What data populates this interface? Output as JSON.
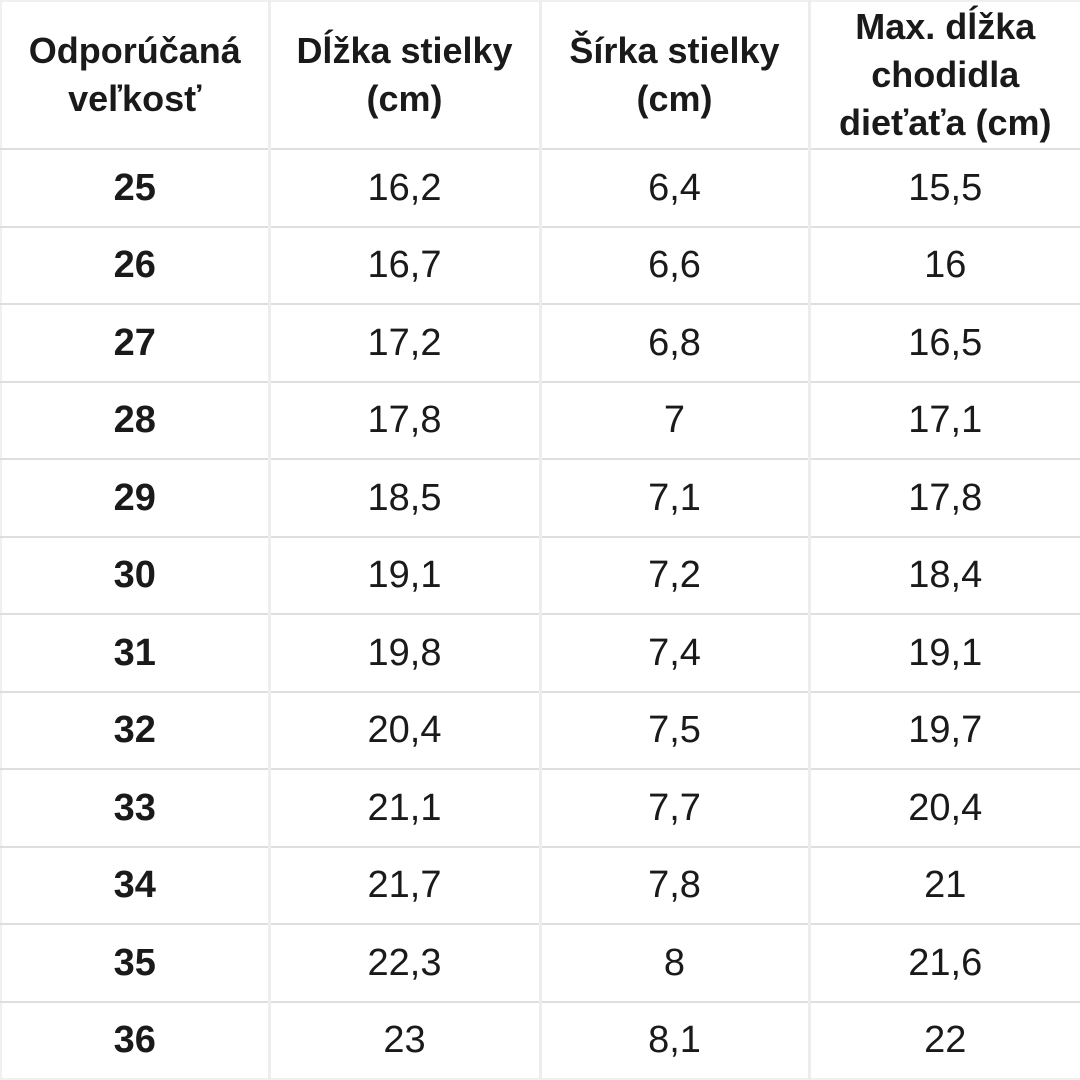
{
  "chart_data": {
    "type": "table",
    "title": "",
    "columns": [
      "Odporúčaná veľkosť",
      "Dĺžka stielky (cm)",
      "Šírka stielky (cm)",
      "Max. dĺžka chodidla dieťaťa (cm)"
    ],
    "rows": [
      [
        "25",
        "16,2",
        "6,4",
        "15,5"
      ],
      [
        "26",
        "16,7",
        "6,6",
        "16"
      ],
      [
        "27",
        "17,2",
        "6,8",
        "16,5"
      ],
      [
        "28",
        "17,8",
        "7",
        "17,1"
      ],
      [
        "29",
        "18,5",
        "7,1",
        "17,8"
      ],
      [
        "30",
        "19,1",
        "7,2",
        "18,4"
      ],
      [
        "31",
        "19,8",
        "7,4",
        "19,1"
      ],
      [
        "32",
        "20,4",
        "7,5",
        "19,7"
      ],
      [
        "33",
        "21,1",
        "7,7",
        "20,4"
      ],
      [
        "34",
        "21,7",
        "7,8",
        "21"
      ],
      [
        "35",
        "22,3",
        "8",
        "21,6"
      ],
      [
        "36",
        "23",
        "8,1",
        "22"
      ]
    ],
    "layout": {
      "grid": "on",
      "decimal_separator": ",",
      "header_rows": 1
    }
  },
  "colors": {
    "background": "#ffffff",
    "text": "#1a1a1a",
    "grid_vertical": "#ededed",
    "grid_horizontal": "#dedede",
    "outer_border": "#f0f0f0"
  }
}
